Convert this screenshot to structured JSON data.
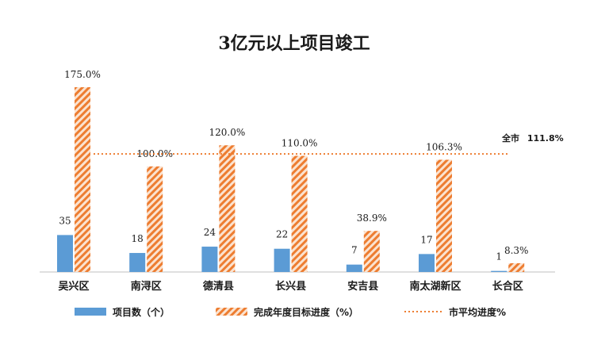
{
  "chart_data": {
    "type": "bar",
    "title": "3亿元以上项目竣工",
    "categories": [
      "吴兴区",
      "南浔区",
      "德清县",
      "长兴县",
      "安吉县",
      "南太湖新区",
      "长合区"
    ],
    "series": [
      {
        "name": "项目数（个）",
        "values": [
          35,
          18,
          24,
          22,
          7,
          17,
          1
        ],
        "labels": [
          "35",
          "18",
          "24",
          "22",
          "7",
          "17",
          "1"
        ],
        "color": "#5b9bd5"
      },
      {
        "name": "完成年度目标进度（%）",
        "values": [
          175.0,
          100.0,
          120.0,
          110.0,
          38.9,
          106.3,
          8.3
        ],
        "labels": [
          "175.0%",
          "100.0%",
          "120.0%",
          "110.0%",
          "38.9%",
          "106.3%",
          "8.3%"
        ],
        "color": "#ed7d31",
        "pattern": "diagonal-hatch"
      }
    ],
    "reference_line": {
      "name": "市平均进度%",
      "value": 111.8,
      "label_prefix": "全市",
      "label_value": "111.8%",
      "color": "#ed7d31",
      "style": "dotted"
    },
    "legend": {
      "position": "bottom",
      "items": [
        "项目数（个）",
        "完成年度目标进度（%）",
        "市平均进度%"
      ]
    },
    "ylim": [
      0,
      175
    ],
    "grid": false
  }
}
